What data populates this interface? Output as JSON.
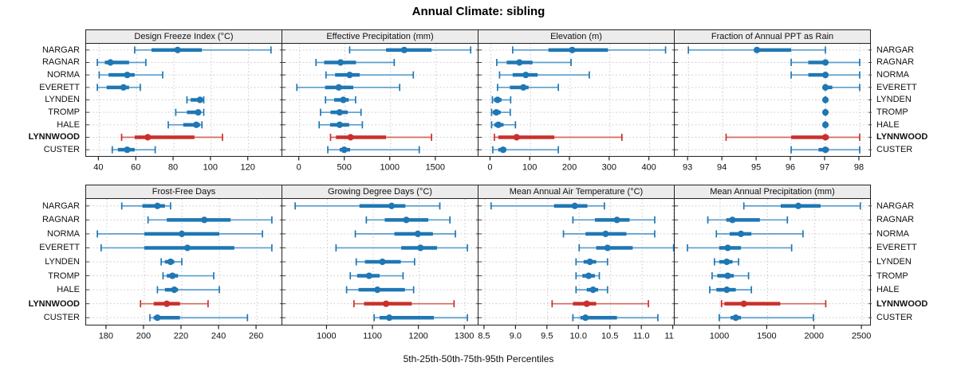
{
  "title": "Annual Climate: sibling",
  "footer": "5th-25th-50th-75th-95th Percentiles",
  "colors": {
    "series": "#1f77b4",
    "series_whisker": "#5b9ecf",
    "highlight": "#c9302c",
    "highlight_whisker": "#d4695f",
    "header_bg": "#ececec",
    "border": "#222222",
    "grid": "#c8c8c8",
    "text": "#111111"
  },
  "chart_data": {
    "type": "scatter",
    "subtype": "horizontal-percentile-interval-dotplot",
    "grid": {
      "rows": 2,
      "cols": 4,
      "gridlines": true,
      "legend": "none"
    },
    "percentile_labels": [
      "5th",
      "25th",
      "50th",
      "75th",
      "95th"
    ],
    "categories": [
      "NARGAR",
      "RAGNAR",
      "NORMA",
      "EVERETT",
      "LYNDEN",
      "TROMP",
      "HALE",
      "LYNNWOOD",
      "CUSTER"
    ],
    "highlight_category": "LYNNWOOD",
    "panels": [
      {
        "title": "Design Freeze Index (°C)",
        "xlim": [
          33,
          138.5
        ],
        "ticks": [
          40,
          60,
          80,
          100,
          120
        ],
        "tick_labels": [
          "40",
          "60",
          "80",
          "100",
          "120"
        ],
        "series": [
          [
            59,
            68,
            82,
            95,
            132
          ],
          [
            39,
            43,
            46,
            56,
            65
          ],
          [
            40,
            45,
            55,
            59,
            74
          ],
          [
            39,
            44,
            53,
            56,
            62
          ],
          [
            87,
            89,
            94,
            95,
            96
          ],
          [
            81,
            87,
            93,
            94,
            96
          ],
          [
            77,
            85,
            92,
            94,
            95
          ],
          [
            52,
            59,
            66,
            91,
            106
          ],
          [
            47,
            50,
            55,
            59,
            70
          ]
        ]
      },
      {
        "title": "Effective Precipitation (mm)",
        "xlim": [
          -190,
          1975
        ],
        "ticks": [
          0,
          500,
          1000,
          1500
        ],
        "tick_labels": [
          "0",
          "500",
          "1000",
          "1500"
        ],
        "series": [
          [
            550,
            950,
            1150,
            1450,
            1880
          ],
          [
            180,
            270,
            450,
            620,
            1040
          ],
          [
            290,
            390,
            550,
            660,
            1250
          ],
          [
            -30,
            280,
            430,
            590,
            1100
          ],
          [
            285,
            380,
            480,
            540,
            615
          ],
          [
            230,
            340,
            440,
            530,
            675
          ],
          [
            215,
            335,
            440,
            545,
            690
          ],
          [
            340,
            400,
            560,
            950,
            1450
          ],
          [
            310,
            440,
            490,
            555,
            1315
          ]
        ]
      },
      {
        "title": "Elevation (m)",
        "xlim": [
          -31,
          465
        ],
        "ticks": [
          0,
          100,
          200,
          300,
          400
        ],
        "tick_labels": [
          "0",
          "100",
          "200",
          "300",
          "400"
        ],
        "series": [
          [
            55,
            145,
            205,
            295,
            440
          ],
          [
            15,
            40,
            72,
            105,
            202
          ],
          [
            22,
            55,
            88,
            118,
            248
          ],
          [
            17,
            48,
            82,
            95,
            170
          ],
          [
            4,
            8,
            17,
            27,
            50
          ],
          [
            2,
            5,
            14,
            25,
            49
          ],
          [
            2,
            9,
            19,
            32,
            62
          ],
          [
            9,
            19,
            65,
            160,
            330
          ],
          [
            5,
            19,
            31,
            39,
            170
          ]
        ]
      },
      {
        "title": "Fraction of Annual PPT as Rain",
        "xlim": [
          92.6,
          98.35
        ],
        "ticks": [
          93,
          94,
          95,
          96,
          97,
          98
        ],
        "tick_labels": [
          "93",
          "94",
          "95",
          "96",
          "97",
          "98"
        ],
        "series": [
          [
            93,
            95,
            95,
            96,
            97
          ],
          [
            96,
            96.5,
            97,
            97,
            98
          ],
          [
            96,
            96.5,
            97,
            97,
            98
          ],
          [
            97,
            97,
            97,
            97.2,
            98
          ],
          [
            97,
            97,
            97,
            97,
            97
          ],
          [
            97,
            97,
            97,
            97,
            97
          ],
          [
            97,
            97,
            97,
            97,
            97
          ],
          [
            94.1,
            96,
            97,
            97.1,
            98
          ],
          [
            96,
            96.8,
            97,
            97.1,
            98
          ]
        ]
      },
      {
        "title": "Frost-Free Days",
        "xlim": [
          169,
          274
        ],
        "ticks": [
          180,
          200,
          220,
          240,
          260
        ],
        "tick_labels": [
          "180",
          "200",
          "220",
          "240",
          "260"
        ],
        "series": [
          [
            188,
            199,
            207,
            211,
            214
          ],
          [
            202,
            212,
            232,
            246,
            268
          ],
          [
            175,
            200,
            220,
            240,
            263
          ],
          [
            177,
            200,
            223,
            248,
            268
          ],
          [
            209,
            211,
            214,
            216,
            220
          ],
          [
            210,
            212,
            215,
            218,
            237
          ],
          [
            207,
            211,
            216,
            218,
            240
          ],
          [
            198,
            205,
            212,
            219,
            234
          ],
          [
            203,
            205,
            207,
            219,
            255
          ]
        ]
      },
      {
        "title": "Growing Degree Days (°C)",
        "xlim": [
          902,
          1331
        ],
        "ticks": [
          1000,
          1100,
          1200,
          1300
        ],
        "tick_labels": [
          "1000",
          "1100",
          "1200",
          "1300"
        ],
        "series": [
          [
            930,
            1070,
            1140,
            1170,
            1245
          ],
          [
            1085,
            1125,
            1172,
            1220,
            1267
          ],
          [
            1061,
            1146,
            1197,
            1230,
            1279
          ],
          [
            1019,
            1161,
            1203,
            1239,
            1305
          ],
          [
            1063,
            1082,
            1120,
            1160,
            1190
          ],
          [
            1050,
            1065,
            1091,
            1114,
            1165
          ],
          [
            1042,
            1068,
            1109,
            1169,
            1188
          ],
          [
            1058,
            1080,
            1128,
            1184,
            1276
          ],
          [
            1102,
            1114,
            1135,
            1232,
            1305
          ]
        ]
      },
      {
        "title": "Mean Annual Air Temperature (°C)",
        "xlim": [
          8.4,
          11.53
        ],
        "ticks": [
          8.5,
          9.0,
          9.5,
          10.0,
          10.5,
          11.0,
          11.5
        ],
        "tick_labels": [
          "8.5",
          "9.0",
          "9.5",
          "10.0",
          "10.5",
          "11.0",
          "11.5"
        ],
        "series": [
          [
            8.6,
            9.6,
            9.93,
            10.13,
            10.4
          ],
          [
            9.9,
            10.25,
            10.6,
            10.8,
            11.2
          ],
          [
            9.75,
            10.1,
            10.42,
            10.75,
            11.2
          ],
          [
            10.0,
            10.27,
            10.45,
            10.85,
            11.5
          ],
          [
            9.95,
            10.07,
            10.17,
            10.27,
            10.45
          ],
          [
            9.95,
            10.05,
            10.15,
            10.25,
            10.32
          ],
          [
            9.95,
            10.12,
            10.22,
            10.3,
            10.45
          ],
          [
            9.57,
            9.9,
            10.12,
            10.27,
            11.1
          ],
          [
            9.9,
            10.02,
            10.1,
            10.6,
            11.25
          ]
        ]
      },
      {
        "title": "Mean Annual Precipitation (mm)",
        "xlim": [
          520,
          2600
        ],
        "ticks": [
          1000,
          1500,
          2000,
          2500
        ],
        "tick_labels": [
          "1000",
          "1500",
          "2000",
          "2500"
        ],
        "series": [
          [
            1250,
            1640,
            1825,
            2060,
            2480
          ],
          [
            870,
            1065,
            1130,
            1420,
            1710
          ],
          [
            960,
            1100,
            1220,
            1330,
            1875
          ],
          [
            655,
            990,
            1080,
            1220,
            1755
          ],
          [
            940,
            990,
            1070,
            1130,
            1195
          ],
          [
            915,
            970,
            1080,
            1145,
            1300
          ],
          [
            890,
            960,
            1070,
            1165,
            1330
          ],
          [
            1015,
            1045,
            1250,
            1635,
            2115
          ],
          [
            990,
            1110,
            1165,
            1220,
            1985
          ]
        ]
      }
    ]
  }
}
